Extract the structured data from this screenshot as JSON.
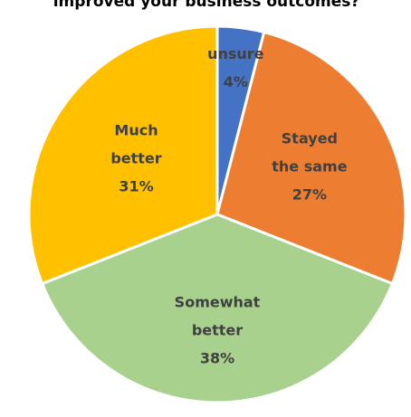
{
  "chart_data": {
    "type": "pie",
    "title": "improved your business outcomes?",
    "legend": "none",
    "slices": [
      {
        "label_lines": [
          "unsure"
        ],
        "percent_label": "4%",
        "value": 4,
        "color": "#4472C4"
      },
      {
        "label_lines": [
          "Stayed",
          "the same"
        ],
        "percent_label": "27%",
        "value": 27,
        "color": "#ED7D31"
      },
      {
        "label_lines": [
          "Somewhat",
          "better"
        ],
        "percent_label": "38%",
        "value": 38,
        "color": "#A9D18E"
      },
      {
        "label_lines": [
          "Much",
          "better"
        ],
        "percent_label": "31%",
        "value": 31,
        "color": "#FFC000"
      }
    ]
  }
}
